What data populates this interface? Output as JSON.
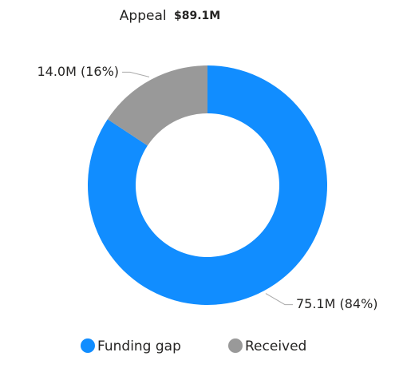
{
  "chart_data": {
    "type": "donut",
    "title": "Appeal",
    "total_label": "$89.1M",
    "categories": [
      "Funding gap",
      "Received"
    ],
    "values": [
      75.1,
      14.0
    ],
    "value_labels": [
      "75.1M (84%)",
      "14.0M (16%)"
    ],
    "colors": [
      "#118dff",
      "#999999"
    ],
    "legend": "bottom"
  }
}
